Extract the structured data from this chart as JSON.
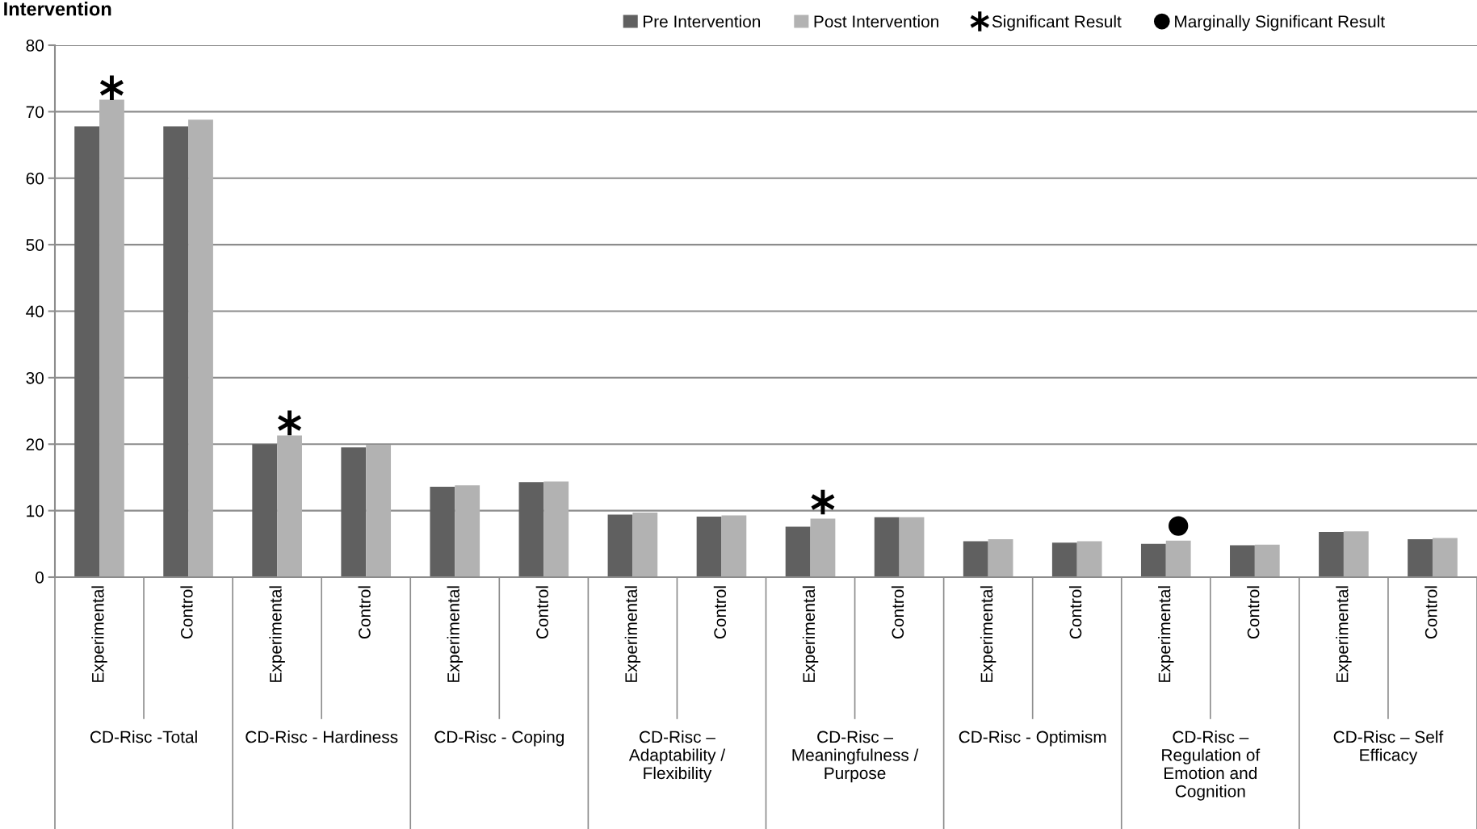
{
  "chart_data": {
    "type": "bar",
    "title": "Intervention",
    "categories": [
      "Experimental",
      "Control",
      "Experimental",
      "Control",
      "Experimental",
      "Control",
      "Experimental",
      "Control",
      "Experimental",
      "Control",
      "Experimental",
      "Control",
      "Experimental",
      "Control",
      "Experimental",
      "Control"
    ],
    "series": [
      {
        "name": "Pre Intervention",
        "color": "#606060",
        "values": [
          67.8,
          67.8,
          20.0,
          19.5,
          13.6,
          14.3,
          9.4,
          9.1,
          7.6,
          9.0,
          5.4,
          5.2,
          5.0,
          4.8,
          6.8,
          5.7
        ]
      },
      {
        "name": "Post Intervention",
        "color": "#b2b2b2",
        "values": [
          71.8,
          68.8,
          21.3,
          19.9,
          13.8,
          14.4,
          9.7,
          9.3,
          8.8,
          9.0,
          5.7,
          5.4,
          5.5,
          4.9,
          6.9,
          5.9
        ]
      },
      {
        "name": "Significant Result",
        "type": "scatter",
        "marker": "cross",
        "color": "#000000",
        "values": [
          73.6,
          null,
          23.2,
          null,
          null,
          null,
          null,
          null,
          11.3,
          null,
          null,
          null,
          null,
          null,
          null,
          null
        ]
      },
      {
        "name": "Marginally Significant Result",
        "type": "scatter",
        "marker": "circle",
        "color": "#000000",
        "values": [
          null,
          null,
          null,
          null,
          null,
          null,
          null,
          null,
          null,
          null,
          null,
          null,
          7.7,
          null,
          null,
          null
        ]
      }
    ],
    "annotations": [
      "CD-Risc -Total",
      "CD-Risc - Hardiness",
      "CD-Risc - Coping",
      "CD-Risc – Adaptability / Flexibility",
      "CD-Risc – Meaningfulness / Purpose",
      "CD-Risc - Optimism",
      "CD-Risc – Regulation of Emotion and Cognition",
      "CD-Risc – Self Efficacy"
    ],
    "ylim": [
      0,
      80
    ],
    "yticks": [
      0,
      10,
      20,
      30,
      40,
      50,
      60,
      70,
      80
    ],
    "grid": "y",
    "legend": "top"
  }
}
